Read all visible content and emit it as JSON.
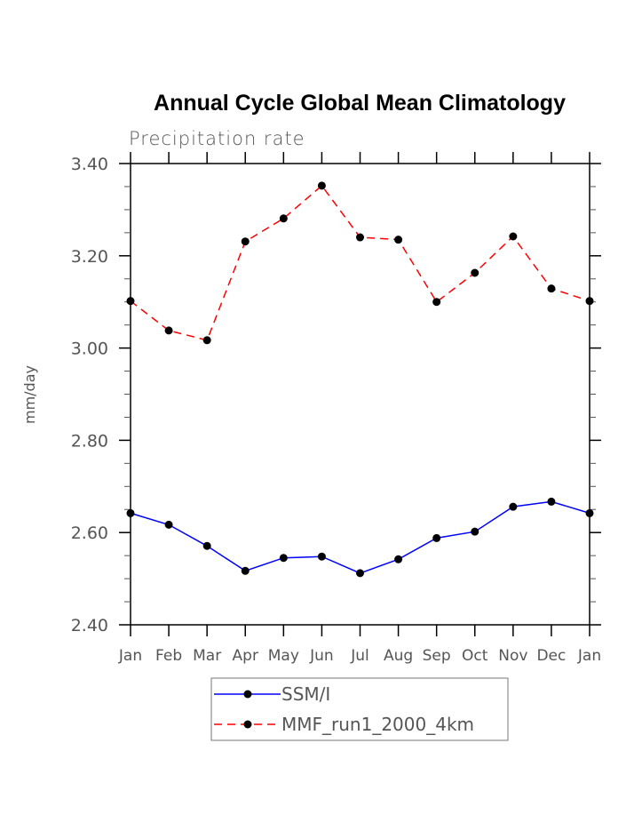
{
  "chart_data": {
    "type": "line",
    "title": "Annual Cycle Global Mean Climatology",
    "subtitle": "Precipitation rate",
    "xlabel": "",
    "ylabel": "mm/day",
    "categories": [
      "Jan",
      "Feb",
      "Mar",
      "Apr",
      "May",
      "Jun",
      "Jul",
      "Aug",
      "Sep",
      "Oct",
      "Nov",
      "Dec",
      "Jan"
    ],
    "ylim": [
      2.4,
      3.4
    ],
    "yticks": [
      2.4,
      2.6,
      2.8,
      3.0,
      3.2,
      3.4
    ],
    "ytick_labels": [
      "2.40",
      "2.60",
      "2.80",
      "3.00",
      "3.20",
      "3.40"
    ],
    "yminor_step": 0.05,
    "grid": false,
    "legend_position": "bottom-center",
    "series": [
      {
        "name": "SSM/I",
        "color": "#0000ff",
        "line_style": "solid",
        "marker": "filled-circle",
        "values": [
          2.642,
          2.617,
          2.571,
          2.517,
          2.545,
          2.548,
          2.512,
          2.542,
          2.588,
          2.602,
          2.656,
          2.667,
          2.642
        ]
      },
      {
        "name": "MMF_run1_2000_4km",
        "color": "#ff0000",
        "line_style": "dashed",
        "marker": "filled-circle",
        "values": [
          3.102,
          3.038,
          3.017,
          3.231,
          3.281,
          3.352,
          3.24,
          3.235,
          3.1,
          3.163,
          3.242,
          3.129,
          3.102
        ]
      }
    ]
  }
}
